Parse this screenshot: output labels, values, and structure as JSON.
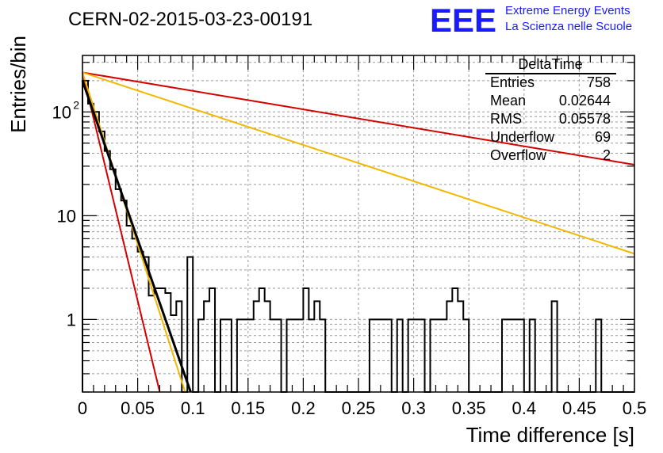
{
  "header": {
    "title": "CERN-02-2015-03-23-00191",
    "logo_text": "EEE",
    "logo_line1": "Extreme Energy Events",
    "logo_line2": "La Scienza nelle Scuole",
    "logo_color": "#1a1aff"
  },
  "stats": {
    "title": "DeltaTime",
    "rows": [
      {
        "label": "Entries",
        "value": "758"
      },
      {
        "label": "Mean",
        "value": "0.02644"
      },
      {
        "label": "RMS",
        "value": "0.05578"
      },
      {
        "label": "Underflow",
        "value": "69"
      },
      {
        "label": "Overflow",
        "value": "2"
      }
    ]
  },
  "chart_data": {
    "type": "line",
    "title": "CERN-02-2015-03-23-00191",
    "xlabel": "Time difference [s]",
    "ylabel": "Entries/bin",
    "xlim": [
      0,
      0.5
    ],
    "ylim": [
      0.2,
      350
    ],
    "yscale": "log",
    "grid": true,
    "x_ticks": [
      {
        "v": 0,
        "label": "0"
      },
      {
        "v": 0.05,
        "label": "0.05"
      },
      {
        "v": 0.1,
        "label": "0.1"
      },
      {
        "v": 0.15,
        "label": "0.15"
      },
      {
        "v": 0.2,
        "label": "0.2"
      },
      {
        "v": 0.25,
        "label": "0.25"
      },
      {
        "v": 0.3,
        "label": "0.3"
      },
      {
        "v": 0.35,
        "label": "0.35"
      },
      {
        "v": 0.4,
        "label": "0.4"
      },
      {
        "v": 0.45,
        "label": "0.45"
      },
      {
        "v": 0.5,
        "label": "0.5"
      }
    ],
    "y_ticks": [
      {
        "v": 1,
        "base": "1",
        "exp": ""
      },
      {
        "v": 10,
        "base": "10",
        "exp": ""
      },
      {
        "v": 100,
        "base": "10",
        "exp": "2"
      }
    ],
    "histogram": {
      "name": "DeltaTime",
      "bin_width": 0.005,
      "color": "#000000",
      "values": [
        200,
        120,
        100,
        65,
        42,
        28,
        18,
        14,
        8,
        6,
        4.5,
        4,
        1.7,
        2,
        2,
        1.8,
        1.1,
        1.5,
        0.15,
        4,
        0.15,
        1,
        1.5,
        2,
        0.15,
        1,
        1,
        0.15,
        1,
        1,
        1,
        1.5,
        2,
        1.5,
        1,
        1,
        0.15,
        1,
        1,
        1,
        2,
        1,
        1.5,
        1,
        0.15,
        0.15,
        0.15,
        0.15,
        0.15,
        0.15,
        0.15,
        0.15,
        1,
        1,
        1,
        1,
        0.15,
        1,
        0.15,
        1,
        1,
        1,
        0.15,
        1,
        1,
        1,
        1.5,
        2,
        1.5,
        1,
        0.15,
        0.15,
        0.15,
        0.15,
        0.15,
        0.15,
        1,
        1,
        1,
        1,
        0.15,
        1,
        0.15,
        0.15,
        0.15,
        1.5,
        0.15,
        0.15,
        0.15,
        0.15,
        0.15,
        0.15,
        0.15,
        1,
        0.15,
        0.15,
        0.15,
        0.15,
        0.15,
        0.15
      ]
    },
    "fits": [
      {
        "color": "#d40000",
        "x": [
          0,
          0.5
        ],
        "y": [
          240,
          31
        ]
      },
      {
        "color": "#f2b800",
        "x": [
          0,
          0.5
        ],
        "y": [
          240,
          4.3
        ]
      },
      {
        "color": "#d40000",
        "x": [
          0,
          0.07
        ],
        "y": [
          240,
          0.2
        ]
      },
      {
        "color": "#f2b800",
        "x": [
          0,
          0.093
        ],
        "y": [
          240,
          0.2
        ]
      },
      {
        "color": "#000000",
        "x": [
          0,
          0.098
        ],
        "y": [
          200,
          0.2
        ]
      }
    ]
  }
}
